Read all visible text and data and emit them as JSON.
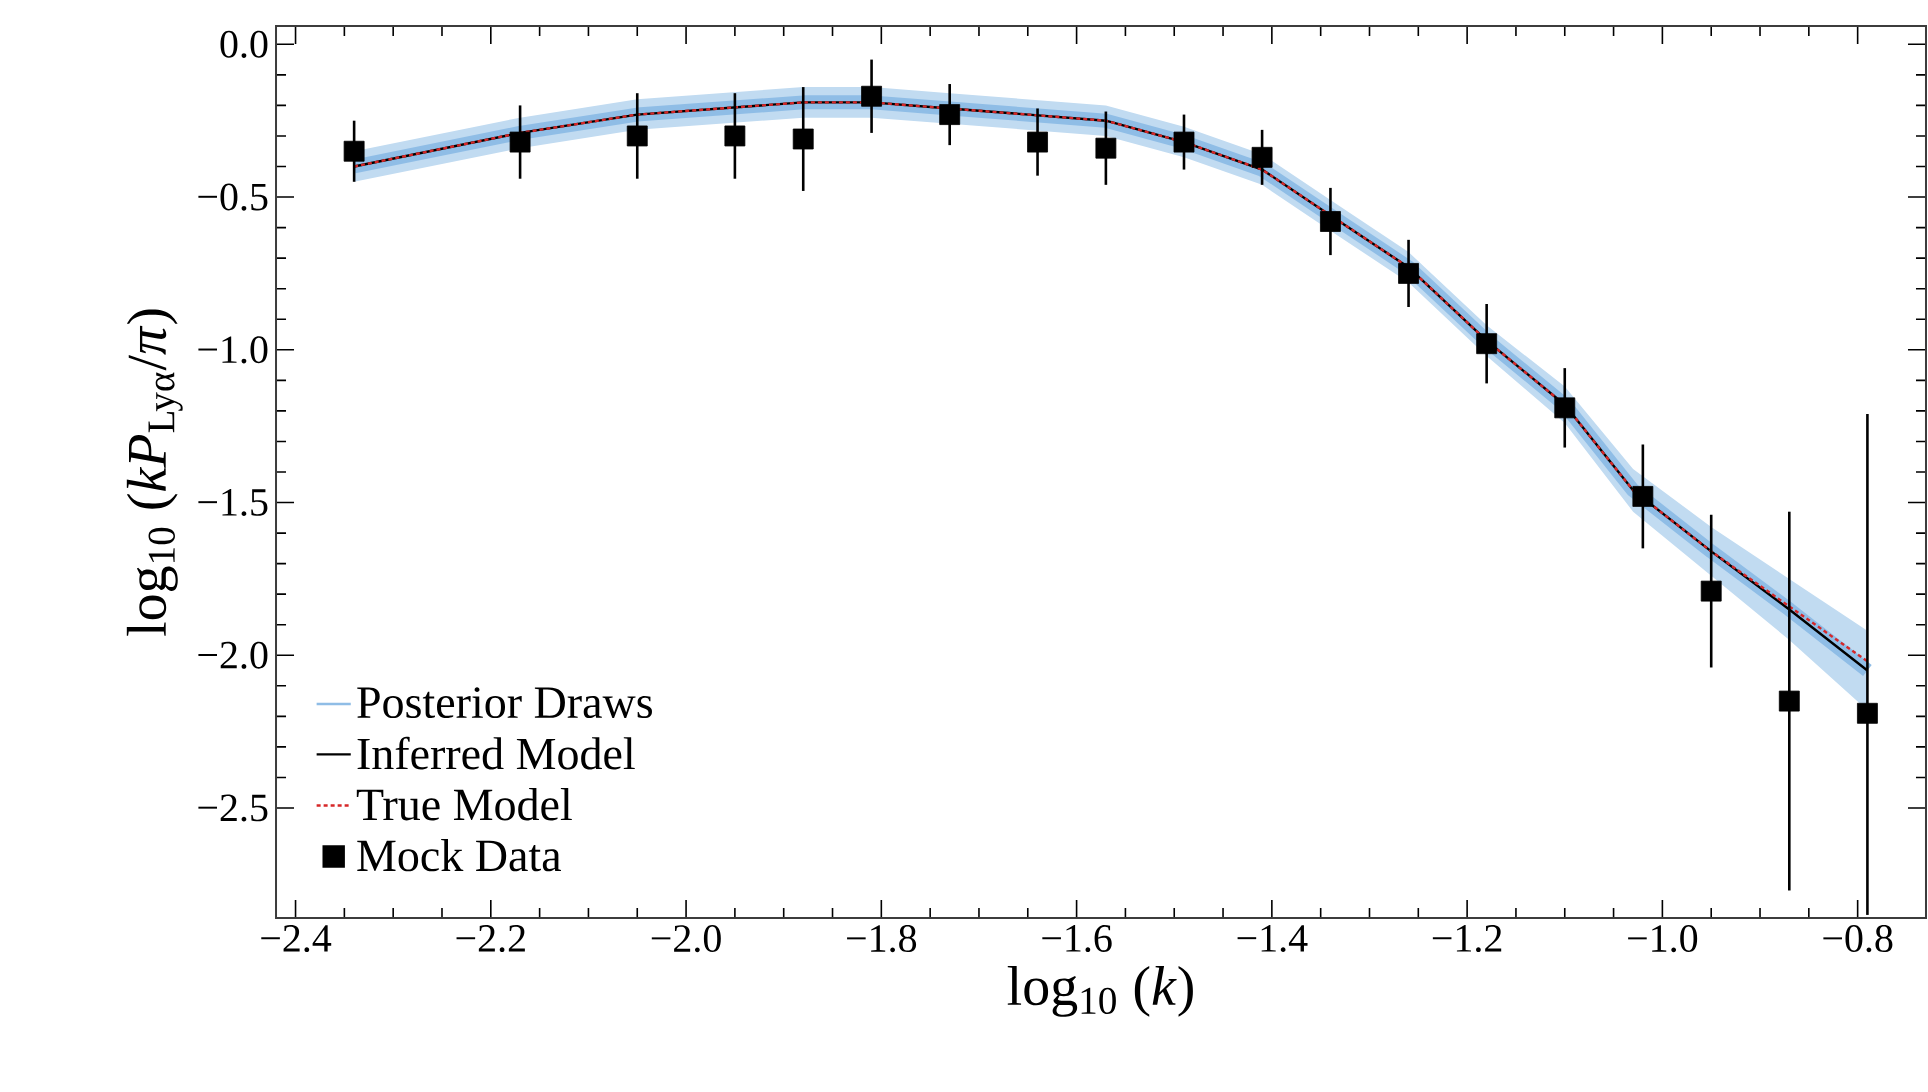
{
  "chart_data": {
    "type": "line",
    "xlabel": "log$_{10}$ (*k*)",
    "ylabel": "log$_{10}$ (*kP*$_{Lyα}$/*π*)",
    "xlim": [
      -2.42,
      -0.73
    ],
    "ylim": [
      -2.86,
      0.06
    ],
    "xticks": [
      {
        "value": -2.4,
        "label": "−2.4"
      },
      {
        "value": -2.2,
        "label": "−2.2"
      },
      {
        "value": -2.0,
        "label": "−2.0"
      },
      {
        "value": -1.8,
        "label": "−1.8"
      },
      {
        "value": -1.6,
        "label": "−1.6"
      },
      {
        "value": -1.4,
        "label": "−1.4"
      },
      {
        "value": -1.2,
        "label": "−1.2"
      },
      {
        "value": -1.0,
        "label": "−1.0"
      },
      {
        "value": -0.8,
        "label": "−0.8"
      }
    ],
    "yticks": [
      {
        "value": -2.5,
        "label": "−2.5"
      },
      {
        "value": -2.0,
        "label": "−2.0"
      },
      {
        "value": -1.5,
        "label": "−1.5"
      },
      {
        "value": -1.0,
        "label": "−1.0"
      },
      {
        "value": -0.5,
        "label": "−0.5"
      },
      {
        "value": 0.0,
        "label": "0.0"
      }
    ],
    "legend": "bottom left",
    "series": [
      {
        "name": "Posterior Draws",
        "color": "#8fbde6",
        "line_style": "solid",
        "x": [
          -2.34,
          -2.17,
          -2.05,
          -1.88,
          -1.81,
          -1.73,
          -1.57,
          -1.49,
          -1.41,
          -1.34,
          -1.26,
          -1.18,
          -1.1,
          -1.03,
          -0.95,
          -0.87,
          -0.79
        ],
        "values": [
          -0.4,
          -0.29,
          -0.23,
          -0.19,
          -0.19,
          -0.21,
          -0.25,
          -0.32,
          -0.41,
          -0.56,
          -0.73,
          -0.97,
          -1.18,
          -1.46,
          -1.66,
          -1.85,
          -2.05
        ],
        "lower": [
          -0.45,
          -0.34,
          -0.28,
          -0.24,
          -0.24,
          -0.26,
          -0.3,
          -0.37,
          -0.46,
          -0.61,
          -0.78,
          -1.02,
          -1.24,
          -1.53,
          -1.74,
          -1.95,
          -2.18
        ],
        "upper": [
          -0.35,
          -0.24,
          -0.18,
          -0.14,
          -0.14,
          -0.16,
          -0.2,
          -0.27,
          -0.36,
          -0.51,
          -0.68,
          -0.92,
          -1.12,
          -1.39,
          -1.58,
          -1.75,
          -1.92
        ]
      },
      {
        "name": "Inferred Model",
        "color": "#000000",
        "line_style": "solid",
        "x": [
          -2.34,
          -2.17,
          -2.05,
          -1.88,
          -1.81,
          -1.73,
          -1.57,
          -1.49,
          -1.41,
          -1.34,
          -1.26,
          -1.18,
          -1.1,
          -1.03,
          -0.95,
          -0.87,
          -0.79
        ],
        "values": [
          -0.4,
          -0.29,
          -0.23,
          -0.19,
          -0.19,
          -0.21,
          -0.25,
          -0.32,
          -0.41,
          -0.56,
          -0.73,
          -0.97,
          -1.18,
          -1.46,
          -1.66,
          -1.85,
          -2.05
        ]
      },
      {
        "name": "True Model",
        "color": "#d62728",
        "line_style": "dotted",
        "x": [
          -2.34,
          -2.17,
          -2.05,
          -1.88,
          -1.81,
          -1.73,
          -1.57,
          -1.49,
          -1.41,
          -1.34,
          -1.26,
          -1.18,
          -1.1,
          -1.03,
          -0.95,
          -0.87,
          -0.79
        ],
        "values": [
          -0.4,
          -0.29,
          -0.23,
          -0.19,
          -0.19,
          -0.21,
          -0.25,
          -0.32,
          -0.41,
          -0.56,
          -0.73,
          -0.97,
          -1.18,
          -1.46,
          -1.66,
          -1.84,
          -2.02
        ]
      },
      {
        "name": "Mock Data",
        "type": "scatter",
        "color": "#000000",
        "marker": "square",
        "x": [
          -2.34,
          -2.17,
          -2.05,
          -1.95,
          -1.88,
          -1.81,
          -1.73,
          -1.64,
          -1.57,
          -1.49,
          -1.41,
          -1.34,
          -1.26,
          -1.18,
          -1.1,
          -1.02,
          -0.95,
          -0.87,
          -0.79
        ],
        "values": [
          -0.35,
          -0.32,
          -0.3,
          -0.3,
          -0.31,
          -0.17,
          -0.23,
          -0.32,
          -0.34,
          -0.32,
          -0.37,
          -0.58,
          -0.75,
          -0.98,
          -1.19,
          -1.48,
          -1.79,
          -2.15,
          -2.19
        ],
        "errors": [
          0.1,
          0.12,
          0.14,
          0.14,
          0.17,
          0.12,
          0.1,
          0.11,
          0.12,
          0.09,
          0.09,
          0.11,
          0.11,
          0.13,
          0.13,
          0.17,
          0.25,
          0.62,
          [
            -2.85,
            -1.21
          ]
        ]
      }
    ]
  }
}
